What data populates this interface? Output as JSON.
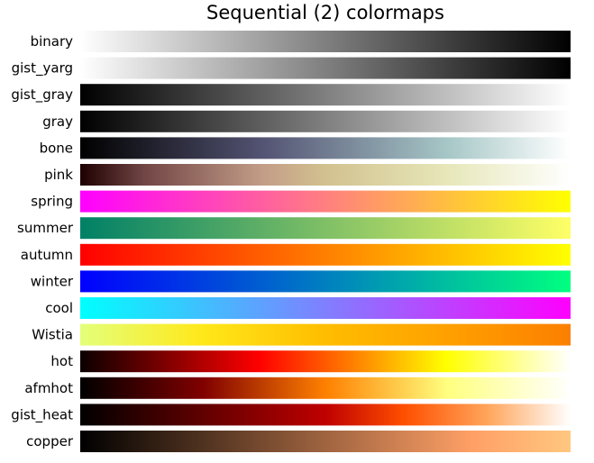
{
  "chart_data": {
    "type": "heatmap",
    "title": "Sequential (2) colormaps",
    "xlabel": "",
    "ylabel": "",
    "grid": false,
    "legend": "none",
    "x_domain": [
      0,
      1
    ],
    "series": [
      {
        "name": "binary",
        "stops": [
          [
            0,
            "#ffffff"
          ],
          [
            1,
            "#000000"
          ]
        ]
      },
      {
        "name": "gist_yarg",
        "stops": [
          [
            0,
            "#ffffff"
          ],
          [
            1,
            "#000000"
          ]
        ]
      },
      {
        "name": "gist_gray",
        "stops": [
          [
            0,
            "#000000"
          ],
          [
            1,
            "#ffffff"
          ]
        ]
      },
      {
        "name": "gray",
        "stops": [
          [
            0,
            "#000000"
          ],
          [
            1,
            "#ffffff"
          ]
        ]
      },
      {
        "name": "bone",
        "stops": [
          [
            0,
            "#000000"
          ],
          [
            0.375,
            "#545474"
          ],
          [
            0.75,
            "#a7c7c7"
          ],
          [
            1,
            "#ffffff"
          ]
        ]
      },
      {
        "name": "pink",
        "stops": [
          [
            0,
            "#1e0000"
          ],
          [
            0.13,
            "#714545"
          ],
          [
            0.37,
            "#c39c87"
          ],
          [
            0.5,
            "#d2c18f"
          ],
          [
            0.75,
            "#e7e7ba"
          ],
          [
            1,
            "#ffffff"
          ]
        ]
      },
      {
        "name": "spring",
        "stops": [
          [
            0,
            "#ff00ff"
          ],
          [
            1,
            "#ffff00"
          ]
        ]
      },
      {
        "name": "summer",
        "stops": [
          [
            0,
            "#008066"
          ],
          [
            1,
            "#ffff66"
          ]
        ]
      },
      {
        "name": "autumn",
        "stops": [
          [
            0,
            "#ff0000"
          ],
          [
            1,
            "#ffff00"
          ]
        ]
      },
      {
        "name": "winter",
        "stops": [
          [
            0,
            "#0000ff"
          ],
          [
            1,
            "#00ff80"
          ]
        ]
      },
      {
        "name": "cool",
        "stops": [
          [
            0,
            "#00ffff"
          ],
          [
            1,
            "#ff00ff"
          ]
        ]
      },
      {
        "name": "Wistia",
        "stops": [
          [
            0,
            "#e4ff7a"
          ],
          [
            0.25,
            "#ffe81a"
          ],
          [
            0.5,
            "#ffbd00"
          ],
          [
            0.75,
            "#ffa000"
          ],
          [
            1,
            "#fc7f00"
          ]
        ]
      },
      {
        "name": "hot",
        "stops": [
          [
            0,
            "#0a0000"
          ],
          [
            0.365,
            "#ff0000"
          ],
          [
            0.746,
            "#ffff00"
          ],
          [
            1,
            "#ffffff"
          ]
        ]
      },
      {
        "name": "afmhot",
        "stops": [
          [
            0,
            "#000000"
          ],
          [
            0.25,
            "#800000"
          ],
          [
            0.5,
            "#ff8000"
          ],
          [
            0.75,
            "#ffff80"
          ],
          [
            1,
            "#ffffff"
          ]
        ]
      },
      {
        "name": "gist_heat",
        "stops": [
          [
            0,
            "#000000"
          ],
          [
            0.25,
            "#600000"
          ],
          [
            0.5,
            "#bf0000"
          ],
          [
            0.66,
            "#ff4f00"
          ],
          [
            0.83,
            "#ffa55b"
          ],
          [
            1,
            "#ffffff"
          ]
        ]
      },
      {
        "name": "copper",
        "stops": [
          [
            0,
            "#000000"
          ],
          [
            0.8,
            "#ffa066"
          ],
          [
            1,
            "#ffc77f"
          ]
        ]
      }
    ]
  }
}
